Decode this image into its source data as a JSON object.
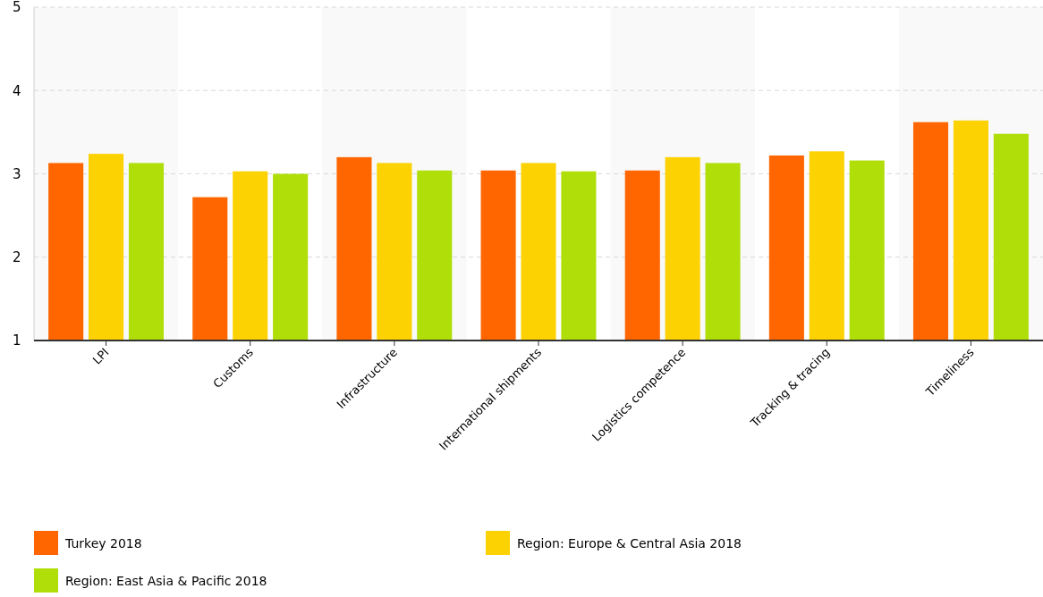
{
  "chart_data": {
    "type": "bar",
    "categories": [
      "LPI",
      "Customs",
      "Infrastructure",
      "International shipments",
      "Logistics competence",
      "Tracking & tracing",
      "Timeliness"
    ],
    "series": [
      {
        "name": "Turkey 2018",
        "color": "#ff6600",
        "values": [
          3.13,
          2.72,
          3.2,
          3.04,
          3.04,
          3.22,
          3.62
        ]
      },
      {
        "name": "Region: Europe & Central Asia 2018",
        "color": "#fcd202",
        "values": [
          3.24,
          3.03,
          3.13,
          3.13,
          3.2,
          3.27,
          3.64
        ]
      },
      {
        "name": "Region: East Asia & Pacific 2018",
        "color": "#b0de09",
        "values": [
          3.13,
          3,
          3.04,
          3.03,
          3.13,
          3.16,
          3.48
        ]
      }
    ],
    "ylim": [
      1,
      5
    ],
    "yticks": [
      1,
      2,
      3,
      4,
      5
    ],
    "grid": "y",
    "legend": "bottom"
  }
}
